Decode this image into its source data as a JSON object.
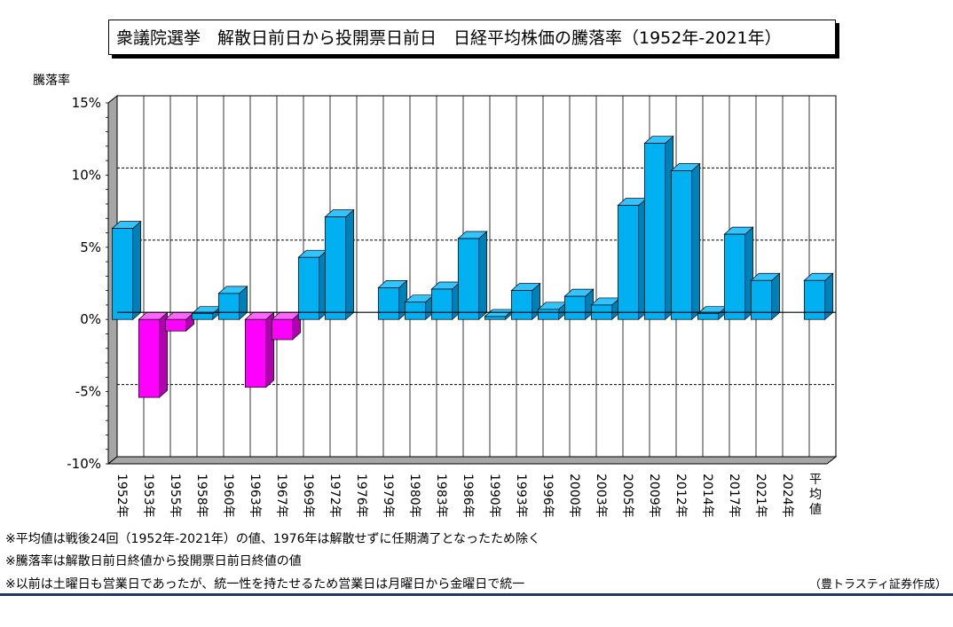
{
  "chart_data": {
    "type": "bar",
    "title": "衆議院選挙　解散日前日から投開票日前日　日経平均株価の騰落率（1952年-2021年）",
    "ylabel": "騰落率",
    "ylim": [
      -10,
      15
    ],
    "yticks": [
      "15%",
      "10%",
      "5%",
      "0%",
      "-5%",
      "-10%"
    ],
    "ytick_values": [
      15,
      10,
      5,
      0,
      -5,
      -10
    ],
    "categories": [
      "1952年",
      "1953年",
      "1955年",
      "1958年",
      "1960年",
      "1963年",
      "1967年",
      "1969年",
      "1972年",
      "1976年",
      "1979年",
      "1980年",
      "1983年",
      "1986年",
      "1990年",
      "1993年",
      "1996年",
      "2000年",
      "2003年",
      "2005年",
      "2009年",
      "2012年",
      "2014年",
      "2017年",
      "2021年",
      "2024年",
      "平均値"
    ],
    "values": [
      6.3,
      -5.4,
      -0.8,
      0.4,
      1.8,
      -4.7,
      -1.4,
      4.3,
      7.1,
      null,
      2.2,
      1.2,
      2.1,
      5.6,
      0.2,
      2.0,
      0.7,
      1.6,
      1.0,
      7.9,
      12.2,
      10.3,
      0.4,
      5.9,
      2.7,
      null,
      2.7
    ],
    "colors": {
      "positive": "#00b0f0",
      "positive_side": "#0080b8",
      "positive_top": "#33c4ff",
      "negative": "#ff00ff",
      "negative_side": "#b000b0",
      "negative_top": "#ff66ff"
    },
    "grid": "dashed at 5% intervals",
    "legend": "none"
  },
  "notes": [
    "※平均値は戦後24回（1952年-2021年）の値、1976年は解散せずに任期満了となったため除く",
    "※騰落率は解散日前日終値から投開票日前日終値の値",
    "※以前は土曜日も営業日であったが、統一性を持たせるため営業日は月曜日から金曜日で統一"
  ],
  "credit": "（豊トラスティ証券作成）"
}
